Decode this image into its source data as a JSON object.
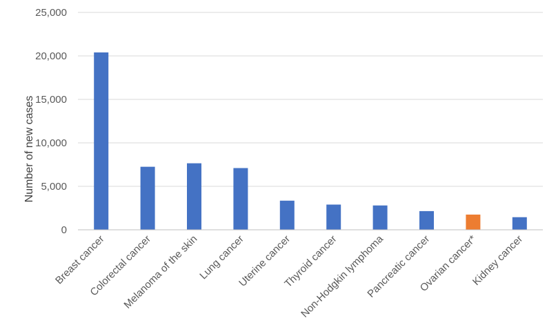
{
  "chart_data": {
    "type": "bar",
    "title": "",
    "xlabel": "",
    "ylabel": "Number of new cases",
    "ylim": [
      0,
      25000
    ],
    "y_ticks": [
      0,
      5000,
      10000,
      15000,
      20000,
      25000
    ],
    "y_tick_labels": [
      "0",
      "5,000",
      "10,000",
      "15,000",
      "20,000",
      "25,000"
    ],
    "grid": true,
    "legend": "none",
    "categories": [
      "Breast cancer",
      "Colorectal cancer",
      "Melanoma of the skin",
      "Lung cancer",
      "Uterine cancer",
      "Thyroid cancer",
      "Non-Hodgkin lymphoma",
      "Pancreatic cancer",
      "Ovarian cancer*",
      "Kidney cancer"
    ],
    "values": [
      20400,
      7250,
      7650,
      7100,
      3350,
      2900,
      2800,
      2150,
      1750,
      1450
    ],
    "colors": {
      "default": "#4472C4",
      "highlight": "#ED7D31",
      "highlighted_category": "Ovarian cancer*",
      "grid": "#D9D9D9",
      "axis": "#BFBFBF"
    }
  }
}
